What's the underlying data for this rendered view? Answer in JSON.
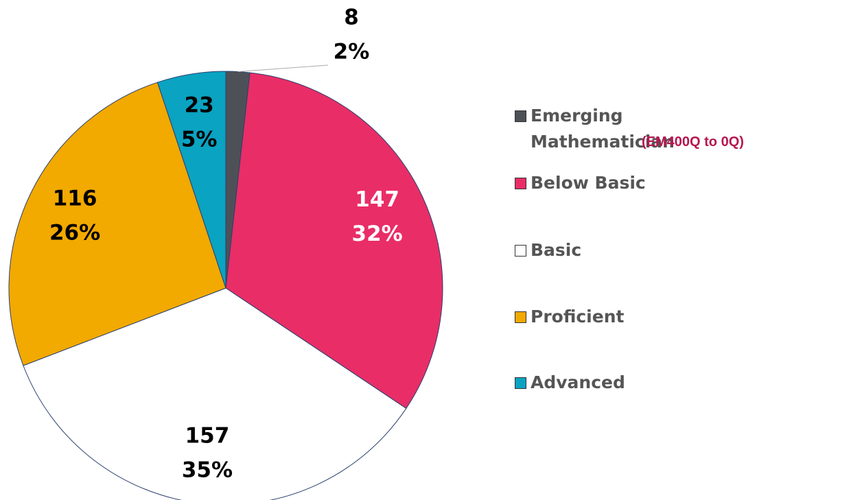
{
  "chart_data": {
    "type": "pie",
    "categories": [
      "Emerging Mathematician",
      "Below Basic",
      "Basic",
      "Proficient",
      "Advanced"
    ],
    "values": [
      8,
      147,
      157,
      116,
      23
    ],
    "percent_labels": [
      "2%",
      "32%",
      "35%",
      "26%",
      "5%"
    ],
    "colors": [
      "#4d5157",
      "#e92d67",
      "#ffffff",
      "#f2a900",
      "#0aa3c2"
    ],
    "label_colors": [
      "#000000",
      "#ffffff",
      "#000000",
      "#000000",
      "#000000"
    ],
    "annotation": "(EM400Q to 0Q)"
  }
}
